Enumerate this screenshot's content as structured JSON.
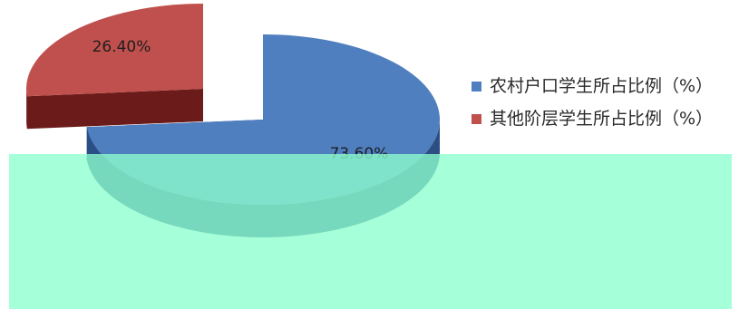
{
  "chart_data": {
    "type": "pie",
    "style": "3d-exploded",
    "slices": [
      {
        "label": "农村户口学生所占比例（%）",
        "value": 73.6,
        "value_label": "73.60%",
        "color": "#4f7fbf",
        "side_color": "#2b4f85"
      },
      {
        "label": "其他阶层学生所占比例（%）",
        "value": 26.4,
        "value_label": "26.40%",
        "color": "#c0504d",
        "side_color": "#6b1c1a"
      }
    ],
    "legend_position": "right",
    "overlay_color": "#8cffcd"
  }
}
